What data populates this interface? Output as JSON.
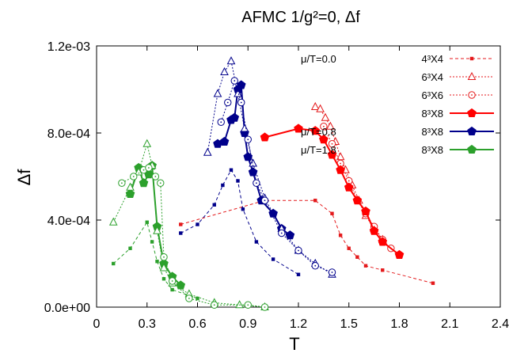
{
  "chart_data": {
    "type": "scatter",
    "title": "AFMC 1/g²=0, Δf",
    "xlabel": "T",
    "ylabel": "Δf",
    "xlim": [
      0,
      2.4
    ],
    "ylim": [
      0,
      0.0012
    ],
    "xticks": [
      0,
      0.3,
      0.6,
      0.9,
      1.2,
      1.5,
      1.8,
      2.1,
      2.4
    ],
    "xtick_labels": [
      "0",
      "0.3",
      "0.6",
      "0.9",
      "1.2",
      "1.5",
      "1.8",
      "2.1",
      "2.4"
    ],
    "yticks": [
      0,
      0.0004,
      0.0008,
      0.0012
    ],
    "ytick_labels": [
      "0.0e+00",
      "4.0e-04",
      "8.0e-04",
      "1.2e-03"
    ],
    "grid": false,
    "legend_position": "top-right",
    "series": [
      {
        "group": "μ/T=0.0",
        "lattice": "4³X4",
        "color": "#e41a1c",
        "style": "dashed",
        "marker": "small-square",
        "filled": true,
        "points": [
          [
            0.5,
            0.00038
          ],
          [
            1.0,
            0.00049
          ],
          [
            1.3,
            0.00049
          ],
          [
            1.4,
            0.00043
          ],
          [
            1.45,
            0.00033
          ],
          [
            1.5,
            0.00027
          ],
          [
            1.55,
            0.00023
          ],
          [
            1.6,
            0.00019
          ],
          [
            1.7,
            0.00017
          ],
          [
            2.0,
            0.00011
          ]
        ]
      },
      {
        "group": "",
        "lattice": "6³X4",
        "color": "#e41a1c",
        "style": "dotted",
        "marker": "triangle",
        "filled": false,
        "points": [
          [
            1.3,
            0.00092
          ],
          [
            1.33,
            0.00091
          ],
          [
            1.36,
            0.00087
          ],
          [
            1.39,
            0.00083
          ],
          [
            1.42,
            0.00076
          ],
          [
            1.45,
            0.00069
          ],
          [
            1.48,
            0.00063
          ],
          [
            1.52,
            0.00056
          ],
          [
            1.56,
            0.00049
          ],
          [
            1.6,
            0.00042
          ],
          [
            1.65,
            0.00036
          ],
          [
            1.7,
            0.00031
          ]
        ]
      },
      {
        "group": "",
        "lattice": "6³X6",
        "color": "#e41a1c",
        "style": "dotted",
        "marker": "circle",
        "filled": false,
        "points": [
          [
            1.35,
            0.00083
          ],
          [
            1.4,
            0.00075
          ],
          [
            1.45,
            0.00066
          ],
          [
            1.5,
            0.00058
          ],
          [
            1.55,
            0.00049
          ],
          [
            1.6,
            0.00043
          ],
          [
            1.65,
            0.00037
          ],
          [
            1.7,
            0.00031
          ],
          [
            1.75,
            0.00027
          ]
        ]
      },
      {
        "group": "",
        "lattice": "8³X8",
        "color": "#ff0000",
        "style": "solid",
        "marker": "pentagon",
        "filled": true,
        "points": [
          [
            1.0,
            0.00078
          ],
          [
            1.2,
            0.00082
          ],
          [
            1.3,
            0.00081
          ],
          [
            1.35,
            0.00077
          ],
          [
            1.4,
            0.0007
          ],
          [
            1.45,
            0.00063
          ],
          [
            1.5,
            0.00055
          ],
          [
            1.55,
            0.00049
          ],
          [
            1.6,
            0.00044
          ],
          [
            1.65,
            0.00035
          ],
          [
            1.7,
            0.0003
          ],
          [
            1.8,
            0.00024
          ]
        ]
      },
      {
        "group": "μ/T=0.8",
        "lattice": "8³X8",
        "color": "#00008b",
        "style": "solid",
        "marker": "pentagon",
        "filled": true,
        "points": [
          [
            0.72,
            0.00075
          ],
          [
            0.76,
            0.00076
          ],
          [
            0.8,
            0.00086
          ],
          [
            0.82,
            0.00087
          ],
          [
            0.84,
            0.001
          ],
          [
            0.86,
            0.00102
          ],
          [
            0.88,
            0.0008
          ],
          [
            0.9,
            0.00069
          ],
          [
            0.93,
            0.00062
          ],
          [
            0.98,
            0.00049
          ],
          [
            1.05,
            0.00043
          ],
          [
            1.1,
            0.00036
          ],
          [
            1.15,
            0.00033
          ]
        ]
      },
      {
        "group": "",
        "lattice": "μ/T=0.8 4³X4",
        "color": "#00008b",
        "style": "dashed",
        "marker": "small-square",
        "filled": true,
        "points": [
          [
            0.5,
            0.00034
          ],
          [
            0.6,
            0.00038
          ],
          [
            0.7,
            0.00047
          ],
          [
            0.75,
            0.00056
          ],
          [
            0.8,
            0.00063
          ],
          [
            0.84,
            0.00058
          ],
          [
            0.87,
            0.00045
          ],
          [
            0.95,
            0.0003
          ],
          [
            1.05,
            0.00022
          ],
          [
            1.2,
            0.00015
          ]
        ]
      },
      {
        "group": "",
        "lattice": "μ/T=0.8 6³X4",
        "color": "#00008b",
        "style": "dotted",
        "marker": "triangle",
        "filled": false,
        "points": [
          [
            0.66,
            0.00071
          ],
          [
            0.72,
            0.00098
          ],
          [
            0.76,
            0.00108
          ],
          [
            0.8,
            0.00113
          ],
          [
            0.84,
            0.00098
          ],
          [
            0.88,
            0.00082
          ],
          [
            0.93,
            0.00066
          ],
          [
            1.0,
            0.0005
          ],
          [
            1.1,
            0.00036
          ],
          [
            1.2,
            0.00026
          ],
          [
            1.3,
            0.0002
          ],
          [
            1.4,
            0.00015
          ]
        ]
      },
      {
        "group": "",
        "lattice": "μ/T=0.8 6³X6",
        "color": "#00008b",
        "style": "dotted",
        "marker": "circle",
        "filled": false,
        "points": [
          [
            0.74,
            0.00085
          ],
          [
            0.78,
            0.00094
          ],
          [
            0.82,
            0.00104
          ],
          [
            0.86,
            0.00094
          ],
          [
            0.9,
            0.00077
          ],
          [
            0.95,
            0.00057
          ],
          [
            1.0,
            0.00049
          ],
          [
            1.1,
            0.00034
          ],
          [
            1.2,
            0.00026
          ],
          [
            1.3,
            0.00019
          ],
          [
            1.4,
            0.00016
          ]
        ]
      },
      {
        "group": "μ/T=1.8",
        "lattice": "8³X8",
        "color": "#2ca02c",
        "style": "solid",
        "marker": "pentagon",
        "filled": true,
        "points": [
          [
            0.2,
            0.00052
          ],
          [
            0.25,
            0.00064
          ],
          [
            0.28,
            0.00057
          ],
          [
            0.31,
            0.00061
          ],
          [
            0.33,
            0.00065
          ],
          [
            0.36,
            0.00037
          ],
          [
            0.4,
            0.0002
          ],
          [
            0.45,
            0.00014
          ],
          [
            0.5,
            0.0001
          ]
        ]
      },
      {
        "group": "",
        "lattice": "μ/T=1.8 4³X4",
        "color": "#2ca02c",
        "style": "dashed",
        "marker": "small-square",
        "filled": true,
        "points": [
          [
            0.1,
            0.0002
          ],
          [
            0.2,
            0.00027
          ],
          [
            0.3,
            0.00039
          ],
          [
            0.33,
            0.0003
          ],
          [
            0.36,
            0.00021
          ],
          [
            0.4,
            0.00013
          ],
          [
            0.45,
            8e-05
          ],
          [
            0.6,
            4e-05
          ]
        ]
      },
      {
        "group": "",
        "lattice": "μ/T=1.8 6³X4",
        "color": "#2ca02c",
        "style": "dotted",
        "marker": "triangle",
        "filled": false,
        "points": [
          [
            0.1,
            0.00039
          ],
          [
            0.2,
            0.00055
          ],
          [
            0.25,
            0.00062
          ],
          [
            0.3,
            0.00075
          ],
          [
            0.33,
            0.00065
          ],
          [
            0.36,
            0.00035
          ],
          [
            0.4,
            0.00018
          ],
          [
            0.45,
            0.00011
          ],
          [
            0.55,
            6e-05
          ],
          [
            0.7,
            2e-05
          ],
          [
            0.85,
            1e-05
          ],
          [
            1.0,
            0.0
          ]
        ]
      },
      {
        "group": "",
        "lattice": "μ/T=1.8 6³X6",
        "color": "#2ca02c",
        "style": "dotted",
        "marker": "circle",
        "filled": false,
        "points": [
          [
            0.15,
            0.00057
          ],
          [
            0.22,
            0.0006
          ],
          [
            0.28,
            0.00063
          ],
          [
            0.31,
            0.00064
          ],
          [
            0.35,
            0.0006
          ],
          [
            0.38,
            0.00057
          ],
          [
            0.4,
            0.00023
          ],
          [
            0.45,
            0.00012
          ],
          [
            0.55,
            4e-05
          ],
          [
            0.7,
            1e-05
          ],
          [
            0.9,
            1e-05
          ],
          [
            1.0,
            0.0
          ]
        ]
      }
    ],
    "legend": [
      {
        "group": "μ/T=0.0",
        "lattice": "4³X4",
        "color": "#e41a1c",
        "style": "dashed",
        "marker": "small-square",
        "filled": true
      },
      {
        "group": "",
        "lattice": "6³X4",
        "color": "#e41a1c",
        "style": "dotted",
        "marker": "triangle",
        "filled": false
      },
      {
        "group": "",
        "lattice": "6³X6",
        "color": "#e41a1c",
        "style": "dotted",
        "marker": "circle",
        "filled": false
      },
      {
        "group": "",
        "lattice": "8³X8",
        "color": "#ff0000",
        "style": "solid",
        "marker": "pentagon",
        "filled": true
      },
      {
        "group": "μ/T=0.8",
        "lattice": "8³X8",
        "color": "#00008b",
        "style": "solid",
        "marker": "pentagon",
        "filled": true
      },
      {
        "group": "μ/T=1.8",
        "lattice": "8³X8",
        "color": "#2ca02c",
        "style": "solid",
        "marker": "pentagon",
        "filled": true
      }
    ]
  }
}
